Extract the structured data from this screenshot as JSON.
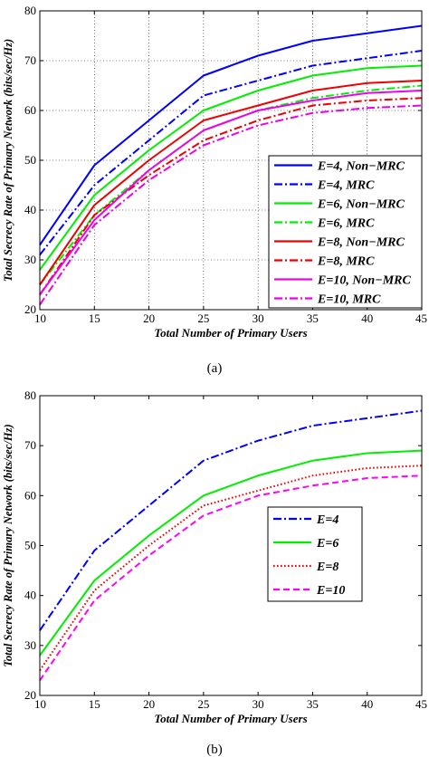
{
  "charts": [
    {
      "panel_label": "(a)",
      "chart_data": {
        "type": "line",
        "x": [
          10,
          15,
          20,
          25,
          30,
          35,
          40,
          45
        ],
        "xlabel": "Total Number of Primary Users",
        "ylabel": "Total Secrecy Rate of Primary Network (bits/sec/Hz)",
        "xlim": [
          10,
          45
        ],
        "ylim": [
          20,
          80
        ],
        "xticks": [
          10,
          15,
          20,
          25,
          30,
          35,
          40,
          45
        ],
        "yticks": [
          20,
          30,
          40,
          50,
          60,
          70,
          80
        ],
        "grid": true,
        "legend_position": "center-right",
        "series": [
          {
            "name": "E=4, Non−MRC",
            "color": "#0000ff",
            "dash": "solid",
            "values": [
              33,
              49,
              58,
              67,
              71,
              74,
              75.5,
              77
            ]
          },
          {
            "name": "E=4, MRC",
            "color": "#0000ff",
            "dash": "dashdot",
            "values": [
              31,
              45,
              54,
              63,
              66,
              69,
              70.5,
              72
            ]
          },
          {
            "name": "E=6, Non−MRC",
            "color": "#00ee00",
            "dash": "solid",
            "values": [
              28,
              43,
              52,
              60,
              64,
              67,
              68.5,
              69
            ]
          },
          {
            "name": "E=6, MRC",
            "color": "#00ee00",
            "dash": "dashdot",
            "values": [
              25,
              39,
              48,
              56,
              60,
              62.5,
              64,
              65
            ]
          },
          {
            "name": "E=8, Non−MRC",
            "color": "#ee0000",
            "dash": "solid",
            "values": [
              25,
              41,
              50,
              58,
              61,
              64,
              65.5,
              66
            ]
          },
          {
            "name": "E=8, MRC",
            "color": "#ee0000",
            "dash": "dashdot",
            "values": [
              23,
              39,
              47,
              54,
              58,
              61,
              62,
              62.5
            ]
          },
          {
            "name": "E=10, Non−MRC",
            "color": "#ee00ee",
            "dash": "solid",
            "values": [
              23,
              38,
              48,
              56,
              60,
              62,
              63.5,
              64
            ]
          },
          {
            "name": "E=10, MRC",
            "color": "#ee00ee",
            "dash": "dashdot",
            "values": [
              21,
              37,
              46,
              53,
              57,
              59.5,
              60.5,
              61
            ]
          }
        ]
      }
    },
    {
      "panel_label": "(b)",
      "chart_data": {
        "type": "line",
        "x": [
          10,
          15,
          20,
          25,
          30,
          35,
          40,
          45
        ],
        "xlabel": "Total Number of Primary Users",
        "ylabel": "Total Secrecy Rate of Primary Network (bits/sec/Hz)",
        "xlim": [
          10,
          45
        ],
        "ylim": [
          20,
          80
        ],
        "xticks": [
          10,
          15,
          20,
          25,
          30,
          35,
          40,
          45
        ],
        "yticks": [
          20,
          30,
          40,
          50,
          60,
          70,
          80
        ],
        "grid": false,
        "legend_position": "center-right",
        "series": [
          {
            "name": "E=4",
            "color": "#0000ff",
            "dash": "dashdot",
            "values": [
              33,
              49,
              58,
              67,
              71,
              74,
              75.5,
              77
            ]
          },
          {
            "name": "E=6",
            "color": "#00ee00",
            "dash": "solid",
            "values": [
              28,
              43,
              52,
              60,
              64,
              67,
              68.5,
              69
            ]
          },
          {
            "name": "E=8",
            "color": "#ee0000",
            "dash": "dotted",
            "values": [
              25,
              41,
              50,
              58,
              61,
              64,
              65.5,
              66
            ]
          },
          {
            "name": "E=10",
            "color": "#ff00ff",
            "dash": "dashed",
            "values": [
              23,
              39,
              48,
              56,
              60,
              62,
              63.5,
              64
            ]
          }
        ]
      }
    }
  ]
}
